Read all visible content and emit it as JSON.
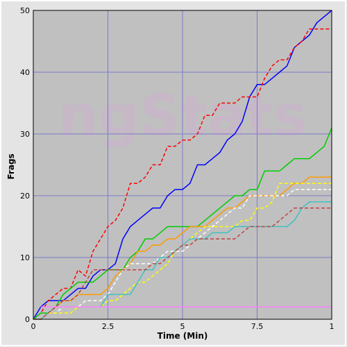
{
  "chart_data": {
    "type": "line",
    "watermark": "ngStats",
    "xlabel": "Time (Min)",
    "ylabel": "Frags",
    "x": [
      0,
      0.25,
      0.5,
      0.75,
      1,
      1.25,
      1.5,
      1.75,
      2,
      2.25,
      2.5,
      2.75,
      3,
      3.25,
      3.5,
      3.75,
      4,
      4.25,
      4.5,
      4.75,
      5,
      5.25,
      5.5,
      5.75,
      6,
      6.25,
      6.5,
      6.75,
      7,
      7.25,
      7.5,
      7.75,
      8,
      8.25,
      8.5,
      8.75,
      9,
      9.25,
      9.5,
      9.75,
      10
    ],
    "xlim": [
      0,
      10
    ],
    "ylim": [
      0,
      50
    ],
    "xticks": [
      0,
      2.5,
      5,
      7.5,
      {
        "value": 10,
        "label": "1"
      }
    ],
    "yticks": [
      0,
      10,
      20,
      30,
      40,
      50
    ],
    "grid": true,
    "series": [
      {
        "color": "#0000ff",
        "dashed": false,
        "values": [
          0,
          2,
          3,
          3,
          3,
          4,
          5,
          5,
          7,
          8,
          8,
          9,
          13,
          15,
          16,
          17,
          18,
          18,
          20,
          21,
          21,
          22,
          25,
          25,
          26,
          27,
          29,
          30,
          32,
          36,
          38,
          38,
          39,
          40,
          41,
          44,
          45,
          46,
          48,
          49,
          50
        ]
      },
      {
        "color": "#ff0000",
        "dashed": true,
        "values": [
          0,
          1,
          3,
          4,
          5,
          5,
          8,
          7,
          11,
          13,
          15,
          16,
          18,
          22,
          22,
          23,
          25,
          25,
          28,
          28,
          29,
          29,
          30,
          33,
          33,
          35,
          35,
          35,
          36,
          36,
          36,
          39,
          41,
          42,
          42,
          44,
          45,
          47,
          47,
          47,
          47
        ]
      },
      {
        "color": "#00cc00",
        "dashed": false,
        "values": [
          0,
          1,
          1,
          2,
          4,
          5,
          6,
          6,
          6,
          7,
          8,
          8,
          8,
          10,
          11,
          13,
          13,
          14,
          15,
          15,
          15,
          15,
          15,
          16,
          17,
          18,
          19,
          20,
          20,
          21,
          21,
          24,
          24,
          24,
          25,
          26,
          26,
          26,
          27,
          28,
          31
        ]
      },
      {
        "color": "#ff9900",
        "dashed": false,
        "values": [
          0,
          0,
          1,
          2,
          3,
          3,
          4,
          4,
          4,
          4,
          5,
          7,
          8,
          9,
          11,
          11,
          12,
          12,
          13,
          13,
          14,
          15,
          15,
          15,
          16,
          17,
          18,
          18,
          19,
          20,
          20,
          20,
          20,
          20,
          21,
          22,
          22,
          23,
          23,
          23,
          23
        ]
      },
      {
        "color": "#ffffff",
        "dashed": true,
        "values": [
          0,
          0,
          1,
          1,
          2,
          2,
          2,
          3,
          3,
          3,
          4,
          6,
          8,
          9,
          9,
          9,
          9,
          10,
          11,
          11,
          11,
          12,
          13,
          14,
          15,
          16,
          17,
          18,
          18,
          20,
          20,
          20,
          20,
          20,
          20,
          21,
          21,
          21,
          21,
          21,
          21
        ]
      },
      {
        "color": "#ffff00",
        "dashed": true,
        "values": [
          0,
          0,
          1,
          1,
          1,
          1,
          2,
          2,
          2,
          2,
          3,
          3,
          4,
          5,
          6,
          6,
          7,
          8,
          9,
          11,
          12,
          13,
          14,
          15,
          15,
          15,
          15,
          15,
          16,
          16,
          18,
          18,
          19,
          22,
          22,
          22,
          22,
          22,
          22,
          22,
          22
        ]
      },
      {
        "color": "#40c0c0",
        "dashed": false,
        "values": [
          0,
          0,
          1,
          2,
          2,
          2,
          2,
          2,
          2,
          2,
          4,
          4,
          4,
          4,
          6,
          8,
          8,
          10,
          10,
          11,
          12,
          13,
          13,
          13,
          14,
          14,
          14,
          15,
          15,
          15,
          15,
          15,
          15,
          15,
          15,
          16,
          18,
          19,
          19,
          19,
          19
        ]
      },
      {
        "color": "#c04040",
        "dashed": true,
        "values": [
          0,
          0,
          1,
          2,
          3,
          3,
          4,
          6,
          8,
          8,
          8,
          8,
          8,
          8,
          8,
          8,
          9,
          9,
          10,
          11,
          12,
          12,
          13,
          13,
          13,
          13,
          13,
          13,
          14,
          15,
          15,
          15,
          15,
          16,
          17,
          18,
          18,
          18,
          18,
          18,
          18
        ]
      },
      {
        "color": "#ff80ff",
        "dashed": false,
        "values": [
          null,
          2,
          2,
          2,
          2,
          2,
          2,
          2,
          2,
          2,
          2,
          2,
          2,
          2,
          2,
          2,
          2,
          2,
          2,
          2,
          2,
          2,
          2,
          2,
          2,
          2,
          2,
          2,
          2,
          2,
          2,
          2,
          2,
          2,
          2,
          2,
          2,
          2,
          2,
          2,
          2
        ]
      }
    ]
  }
}
